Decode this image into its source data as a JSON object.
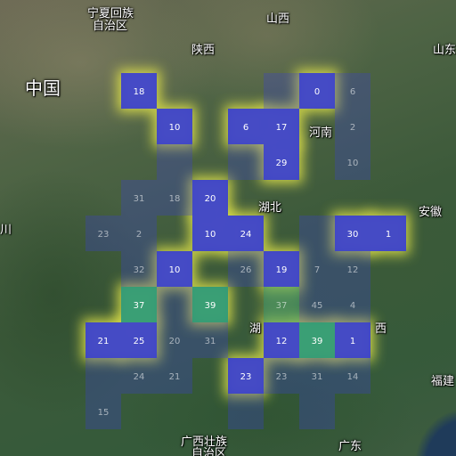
{
  "map_labels": {
    "ningxia_line1": "宁夏回族",
    "ningxia_line2": "自治区",
    "shanxi_north": "山西",
    "shaanxi": "陕西",
    "shandong": "山东",
    "china": "中国",
    "henan": "河南",
    "hubei": "湖北",
    "anhui": "安徽",
    "sichuan_partial": "川",
    "hunan_partial": "湖",
    "jiangxi_partial": "西",
    "fujian": "福建",
    "guangxi_line1": "广西壮族",
    "guangxi_line2": "自治区",
    "guangdong": "广东"
  },
  "heat_grid": {
    "cells": [
      {
        "row": 0,
        "col": 1,
        "value": "18",
        "status": "low"
      },
      {
        "row": 0,
        "col": 5,
        "value": "",
        "status": "faint"
      },
      {
        "row": 0,
        "col": 6,
        "value": "0",
        "status": "low"
      },
      {
        "row": 0,
        "col": 7,
        "value": "6",
        "status": "faint"
      },
      {
        "row": 1,
        "col": 2,
        "value": "10",
        "status": "low"
      },
      {
        "row": 1,
        "col": 4,
        "value": "6",
        "status": "low"
      },
      {
        "row": 1,
        "col": 5,
        "value": "17",
        "status": "low"
      },
      {
        "row": 1,
        "col": 7,
        "value": "2",
        "status": "faint"
      },
      {
        "row": 2,
        "col": 2,
        "value": "",
        "status": "faint"
      },
      {
        "row": 2,
        "col": 4,
        "value": "",
        "status": "faint"
      },
      {
        "row": 2,
        "col": 5,
        "value": "29",
        "status": "low"
      },
      {
        "row": 2,
        "col": 7,
        "value": "10",
        "status": "faint"
      },
      {
        "row": 3,
        "col": 1,
        "value": "31",
        "status": "faint"
      },
      {
        "row": 3,
        "col": 2,
        "value": "18",
        "status": "faint"
      },
      {
        "row": 3,
        "col": 3,
        "value": "20",
        "status": "low"
      },
      {
        "row": 4,
        "col": 0,
        "value": "23",
        "status": "faint"
      },
      {
        "row": 4,
        "col": 1,
        "value": "2",
        "status": "faint"
      },
      {
        "row": 4,
        "col": 3,
        "value": "10",
        "status": "low"
      },
      {
        "row": 4,
        "col": 4,
        "value": "24",
        "status": "low"
      },
      {
        "row": 4,
        "col": 6,
        "value": "",
        "status": "faint"
      },
      {
        "row": 4,
        "col": 7,
        "value": "30",
        "status": "low"
      },
      {
        "row": 4,
        "col": 8,
        "value": "1",
        "status": "low"
      },
      {
        "row": 5,
        "col": 1,
        "value": "32",
        "status": "faint"
      },
      {
        "row": 5,
        "col": 2,
        "value": "10",
        "status": "low"
      },
      {
        "row": 5,
        "col": 4,
        "value": "26",
        "status": "faint"
      },
      {
        "row": 5,
        "col": 5,
        "value": "19",
        "status": "low"
      },
      {
        "row": 5,
        "col": 6,
        "value": "7",
        "status": "faint"
      },
      {
        "row": 5,
        "col": 7,
        "value": "12",
        "status": "faint"
      },
      {
        "row": 6,
        "col": 1,
        "value": "37",
        "status": "high"
      },
      {
        "row": 6,
        "col": 2,
        "value": "",
        "status": "faint"
      },
      {
        "row": 6,
        "col": 3,
        "value": "39",
        "status": "high"
      },
      {
        "row": 6,
        "col": 5,
        "value": "37",
        "status": "high-faint"
      },
      {
        "row": 6,
        "col": 6,
        "value": "45",
        "status": "faint"
      },
      {
        "row": 6,
        "col": 7,
        "value": "4",
        "status": "faint"
      },
      {
        "row": 7,
        "col": 0,
        "value": "21",
        "status": "low"
      },
      {
        "row": 7,
        "col": 1,
        "value": "25",
        "status": "low"
      },
      {
        "row": 7,
        "col": 2,
        "value": "20",
        "status": "faint"
      },
      {
        "row": 7,
        "col": 3,
        "value": "31",
        "status": "faint"
      },
      {
        "row": 7,
        "col": 5,
        "value": "12",
        "status": "low"
      },
      {
        "row": 7,
        "col": 6,
        "value": "39",
        "status": "high"
      },
      {
        "row": 7,
        "col": 7,
        "value": "1",
        "status": "low"
      },
      {
        "row": 8,
        "col": 0,
        "value": "",
        "status": "faint"
      },
      {
        "row": 8,
        "col": 1,
        "value": "24",
        "status": "faint"
      },
      {
        "row": 8,
        "col": 2,
        "value": "21",
        "status": "faint"
      },
      {
        "row": 8,
        "col": 4,
        "value": "23",
        "status": "low"
      },
      {
        "row": 8,
        "col": 5,
        "value": "23",
        "status": "faint"
      },
      {
        "row": 8,
        "col": 6,
        "value": "31",
        "status": "faint"
      },
      {
        "row": 8,
        "col": 7,
        "value": "14",
        "status": "faint"
      },
      {
        "row": 9,
        "col": 0,
        "value": "15",
        "status": "faint"
      },
      {
        "row": 9,
        "col": 4,
        "value": "",
        "status": "faint"
      },
      {
        "row": 9,
        "col": 6,
        "value": "",
        "status": "faint"
      }
    ],
    "colors": {
      "low": "#3a3fd0",
      "high": "#2e9a7a",
      "glow": "#e6e84a"
    }
  }
}
